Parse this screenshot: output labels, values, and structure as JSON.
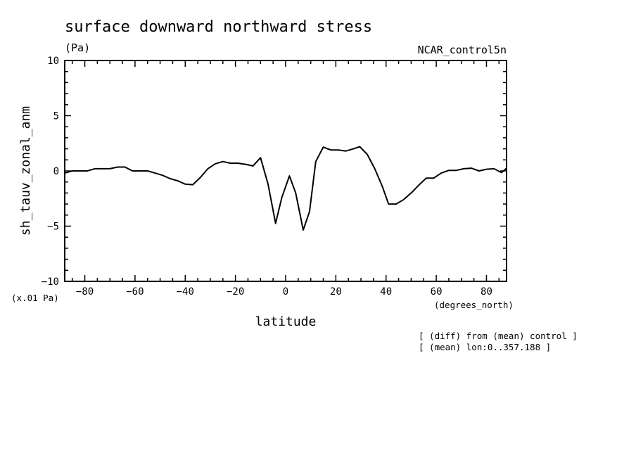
{
  "chart_data": {
    "type": "line",
    "title": "surface downward northward stress",
    "subtitle_left": "(Pa)",
    "subtitle_right": "NCAR_control5n",
    "ylabel": "sh_tauv_zonal_anm",
    "xlabel": "latitude",
    "y_units": "(x.01 Pa)",
    "x_units": "(degrees_north)",
    "annotations": [
      "[ (diff) from (mean) control ]",
      "[ (mean) lon:0..357.188 ]"
    ],
    "xlim": [
      -88,
      88
    ],
    "ylim": [
      -10,
      10
    ],
    "x_ticks": [
      -80,
      -60,
      -40,
      -20,
      0,
      20,
      40,
      60,
      80
    ],
    "x_tick_labels": [
      "-80",
      "-60",
      "-40",
      "-20",
      "0",
      "20",
      "40",
      "60",
      "80"
    ],
    "y_ticks": [
      -10,
      -5,
      0,
      5,
      10
    ],
    "y_tick_labels": [
      "-10",
      "-5",
      "0",
      "5",
      "10"
    ],
    "grid": false,
    "series": [
      {
        "x": [
          -88,
          -85,
          -82,
          -79,
          -76,
          -73,
          -70,
          -67,
          -64,
          -61,
          -58,
          -55,
          -52,
          -49,
          -46,
          -43,
          -40,
          -37,
          -34,
          -31,
          -28,
          -25,
          -22,
          -19,
          -16,
          -13,
          -10,
          -7,
          -4,
          -1.5,
          1.5,
          4,
          7,
          9.5,
          12,
          15,
          18,
          21,
          24,
          27,
          29.5,
          32.5,
          35.5,
          38.5,
          41,
          44,
          47,
          50,
          53,
          56,
          59,
          62,
          65,
          68,
          71,
          74,
          77,
          80,
          83,
          86,
          88
        ],
        "y": [
          -0.2,
          0,
          0,
          0,
          0.2,
          0.2,
          0.2,
          0.35,
          0.35,
          0,
          0,
          0,
          -0.2,
          -0.4,
          -0.7,
          -0.9,
          -1.2,
          -1.25,
          -0.6,
          0.2,
          0.65,
          0.85,
          0.7,
          0.7,
          0.6,
          0.45,
          1.2,
          -1.2,
          -4.75,
          -2.4,
          -0.45,
          -2.0,
          -5.35,
          -3.7,
          0.85,
          2.15,
          1.9,
          1.9,
          1.8,
          2.0,
          2.2,
          1.5,
          0.2,
          -1.4,
          -3.0,
          -3.0,
          -2.6,
          -2.0,
          -1.3,
          -0.65,
          -0.65,
          -0.2,
          0.05,
          0.05,
          0.2,
          0.25,
          0,
          0.15,
          0.2,
          -0.15,
          0.25
        ]
      }
    ]
  }
}
